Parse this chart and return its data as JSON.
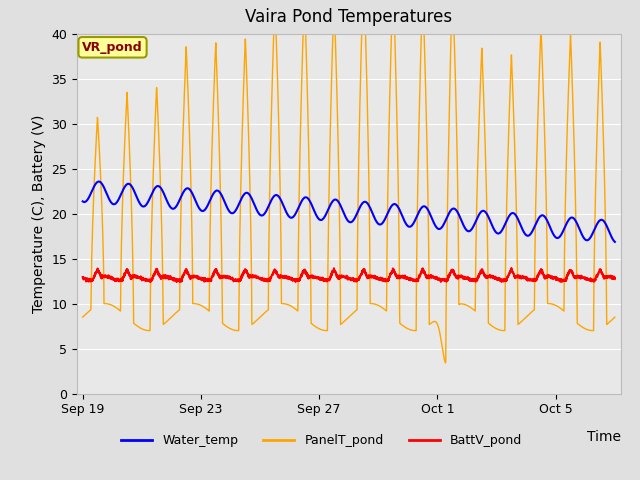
{
  "title": "Vaira Pond Temperatures",
  "xlabel": "Time",
  "ylabel": "Temperature (C), Battery (V)",
  "ylim": [
    0,
    40
  ],
  "x_ticks_labels": [
    "Sep 19",
    "Sep 23",
    "Sep 27",
    "Oct 1",
    "Oct 5"
  ],
  "annotation_text": "VR_pond",
  "annotation_color": "#8B0000",
  "annotation_bg": "#FFFF99",
  "annotation_edge": "#999900",
  "water_color": "#0000FF",
  "panel_color": "#FFA500",
  "batt_color": "#FF0000",
  "fig_bg_color": "#e0e0e0",
  "plot_bg_color": "#e8e8e8",
  "grid_color": "#ffffff",
  "legend_labels": [
    "Water_temp",
    "PanelT_pond",
    "BattV_pond"
  ],
  "title_fontsize": 12,
  "axis_label_fontsize": 10,
  "tick_fontsize": 9
}
